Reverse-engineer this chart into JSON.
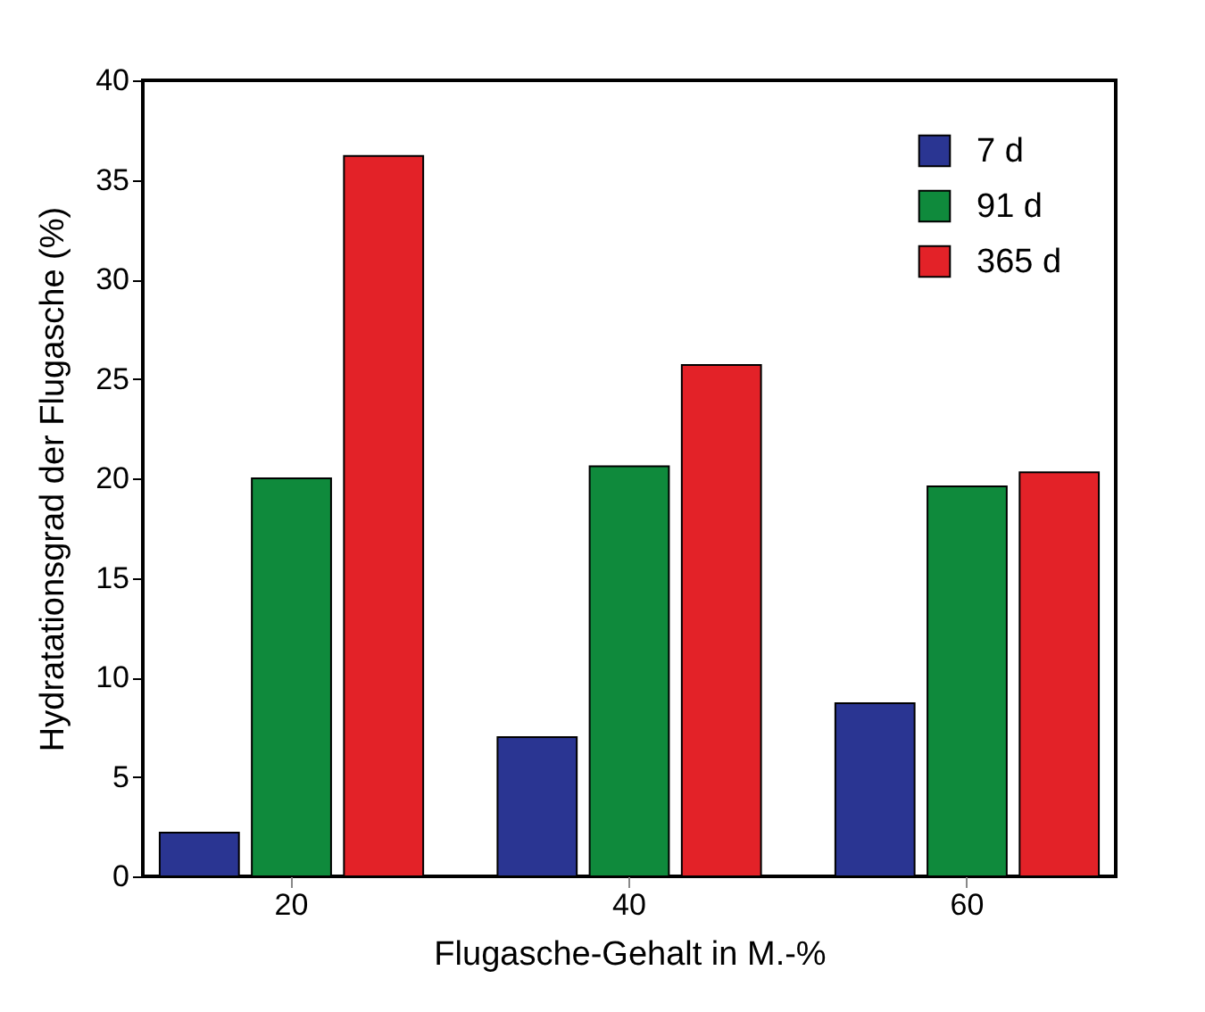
{
  "chart_data": {
    "type": "bar",
    "xlabel": "Flugasche-Gehalt in M.-%",
    "ylabel": "Hydratationsgrad der Flugasche    (%)",
    "categories": [
      "20",
      "40",
      "60"
    ],
    "series": [
      {
        "name": "7 d",
        "color": "#2a3592",
        "values": [
          2.2,
          7.0,
          8.7
        ]
      },
      {
        "name": "91 d",
        "color": "#0f8a3c",
        "values": [
          20.0,
          20.6,
          19.6
        ]
      },
      {
        "name": "365 d",
        "color": "#e32228",
        "values": [
          36.2,
          25.7,
          20.3
        ]
      }
    ],
    "ylim": [
      0,
      40
    ],
    "yticks": [
      0,
      5,
      10,
      15,
      20,
      25,
      30,
      35,
      40
    ],
    "grid": false,
    "legend": "top right"
  }
}
